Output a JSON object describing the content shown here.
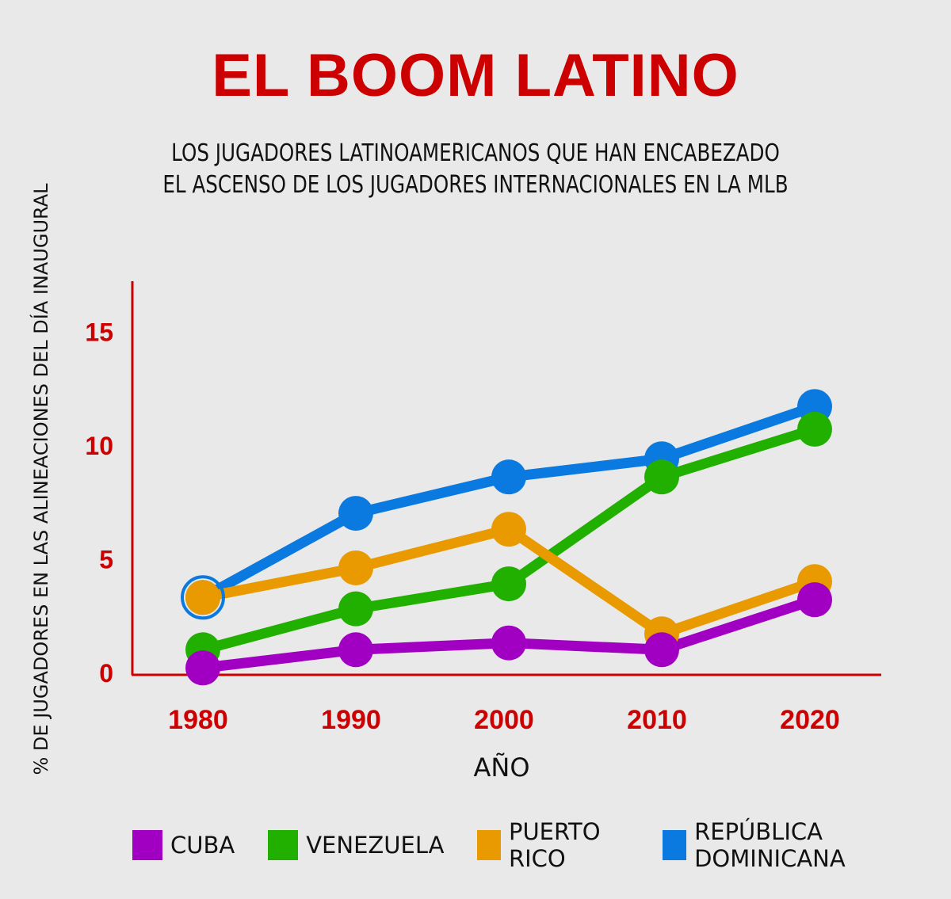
{
  "title": "EL BOOM LATINO",
  "subtitle": [
    "LOS JUGADORES LATINOAMERICANOS QUE HAN ENCABEZADO",
    "EL ASCENSO DE LOS JUGADORES INTERNACIONALES EN LA MLB"
  ],
  "chart_data": {
    "type": "line",
    "title": "EL BOOM LATINO",
    "xlabel": "AÑO",
    "ylabel": "% DE JUGADORES EN LAS ALINEACIONES DEL DÍA INAUGURAL",
    "x": [
      "1980",
      "1990",
      "2000",
      "2010",
      "2020"
    ],
    "yticks": [
      "0",
      "5",
      "10",
      "15"
    ],
    "ylim": [
      0,
      17
    ],
    "grid": false,
    "legend_placement": "bottom",
    "series": [
      {
        "name": "CUBA",
        "color": "#a100c2",
        "values": [
          0.2,
          1.0,
          1.3,
          1.0,
          3.2
        ]
      },
      {
        "name": "VENEZUELA",
        "color": "#22b000",
        "values": [
          1.0,
          2.8,
          3.9,
          8.6,
          10.7
        ]
      },
      {
        "name": "PUERTO RICO",
        "color": "#e89a00",
        "values": [
          3.3,
          4.6,
          6.3,
          1.7,
          4.0
        ]
      },
      {
        "name": "REPÚBLICA DOMINICANA",
        "color": "#0a7ae0",
        "values": [
          3.3,
          7.0,
          8.6,
          9.4,
          11.7
        ]
      }
    ],
    "axis_color": "#cc0000"
  }
}
